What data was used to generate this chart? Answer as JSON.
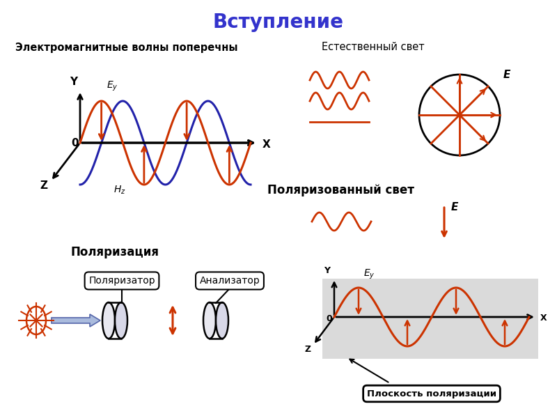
{
  "title": "Вступление",
  "title_color": "#3333cc",
  "title_fontsize": 20,
  "label_em_waves": "Электромагнитные волны поперечны",
  "label_natural": "Естественный свет",
  "label_polarized": "Поляризованный свет",
  "label_polarization": "Поляризация",
  "label_polarizer": "Поляризатор",
  "label_analyzer": "Анализатор",
  "label_plane": "Плоскость поляризации",
  "wave_color": "#cc3300",
  "wave_color2": "#2222aa",
  "arrow_color": "#cc3300",
  "black": "#000000",
  "gray_bg": "#cccccc",
  "bg_color": "#ffffff"
}
